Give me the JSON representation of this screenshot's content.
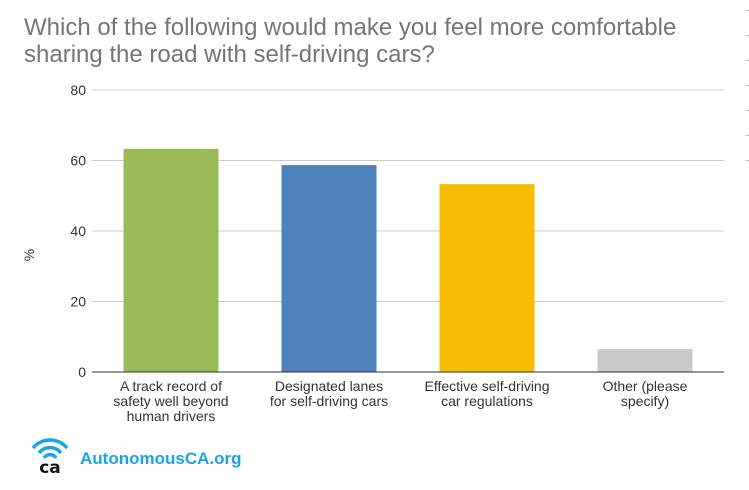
{
  "chart_data": {
    "type": "bar",
    "title": "Which of the following would make you feel more comfortable sharing the road with self-driving cars?",
    "xlabel": "",
    "ylabel": "%",
    "ylim": [
      0,
      80
    ],
    "yticks": [
      0,
      20,
      40,
      60,
      80
    ],
    "grid": true,
    "categories": [
      [
        "A track record of",
        "safety well beyond",
        "human drivers"
      ],
      [
        "Designated lanes",
        "for self-driving cars"
      ],
      [
        "Effective self-driving",
        "car regulations"
      ],
      [
        "Other (please",
        "specify)"
      ]
    ],
    "values": [
      63.3,
      58.7,
      53.3,
      6.5
    ],
    "colors": [
      "#9bbb59",
      "#4f81bd",
      "#f7bd00",
      "#c9c9c9"
    ]
  },
  "logo": {
    "text": "AutonomousCA.org",
    "mark": "ca"
  }
}
